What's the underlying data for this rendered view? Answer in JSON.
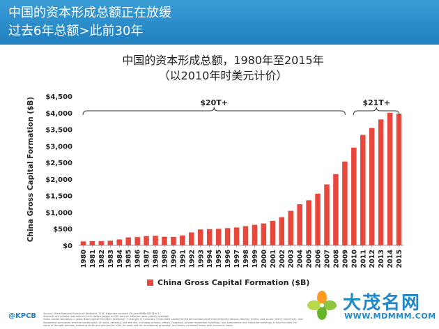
{
  "header": {
    "line1": "中国的资本形成总额正在放缓",
    "line2": "过去6年总额>此前30年"
  },
  "chart_title": {
    "line1": "中国的资本形成总额，1980年至2015年",
    "line2": "（以2010年时美元计价）"
  },
  "brackets": [
    {
      "label": "$20T+",
      "from": "1980",
      "to": "2009"
    },
    {
      "label": "$21T+",
      "from": "2010",
      "to": "2015"
    }
  ],
  "footnote": [
    "Source: China National Bureau of Statistics, 5/16. Assumes constant FX rate RMB/USD @ 6.5.",
    "Amounts are inflation adjusted to 2010 dollars based on IMF data on inflation rates (yearly average).",
    "Gross capital formation = gross fixed capital formation (majority) + changes in inventory. Gross fixed capital formation includes land improvements (fences, ditches, drains, and so on); plant, machinery, and",
    "equipment purchases; and the construction of roads, railways, and the like, including schools, offices, hospitals, private residential dwellings, and commercial and industrial buildings. It also includes the",
    "value of drought animals, breeding stock and animals for milk, for wool and for recreational purposes, and newly increased forest with economic value."
  ],
  "brand": "@KPCB",
  "watermark": {
    "name": "大茂名网",
    "url": "WWW.MDMMM.COM"
  },
  "colors": {
    "bar": "#e8473b",
    "banner": "#2a8cca",
    "watermark": "#1e88c8"
  },
  "chart_data": {
    "type": "bar",
    "title": "中国的资本形成总额，1980年至2015年",
    "subtitle": "（以2010年时美元计价）",
    "xlabel": "",
    "ylabel": "China Gross Capital Formation ($B)",
    "legend": "China Gross Capital Formation ($B)",
    "legend_position": "bottom",
    "grid": false,
    "ylim": [
      0,
      4500
    ],
    "yticks": [
      "$0",
      "$500",
      "$1,000",
      "$1,500",
      "$2,000",
      "$2,500",
      "$3,000",
      "$3,500",
      "$4,000",
      "$4,500"
    ],
    "ytick_values": [
      0,
      500,
      1000,
      1500,
      2000,
      2500,
      3000,
      3500,
      4000,
      4500
    ],
    "categories": [
      "1980",
      "1981",
      "1982",
      "1983",
      "1984",
      "1985",
      "1986",
      "1987",
      "1988",
      "1989",
      "1990",
      "1991",
      "1992",
      "1993",
      "1994",
      "1995",
      "1996",
      "1997",
      "1998",
      "1999",
      "2000",
      "2001",
      "2002",
      "2003",
      "2004",
      "2005",
      "2006",
      "2007",
      "2008",
      "2009",
      "2010",
      "2011",
      "2012",
      "2013",
      "2014",
      "2015"
    ],
    "values": [
      120,
      125,
      130,
      140,
      180,
      240,
      250,
      280,
      290,
      260,
      255,
      300,
      390,
      480,
      490,
      500,
      520,
      540,
      580,
      620,
      660,
      740,
      850,
      1040,
      1240,
      1360,
      1560,
      1840,
      2150,
      2530,
      2950,
      3330,
      3540,
      3800,
      4000,
      3970
    ]
  }
}
